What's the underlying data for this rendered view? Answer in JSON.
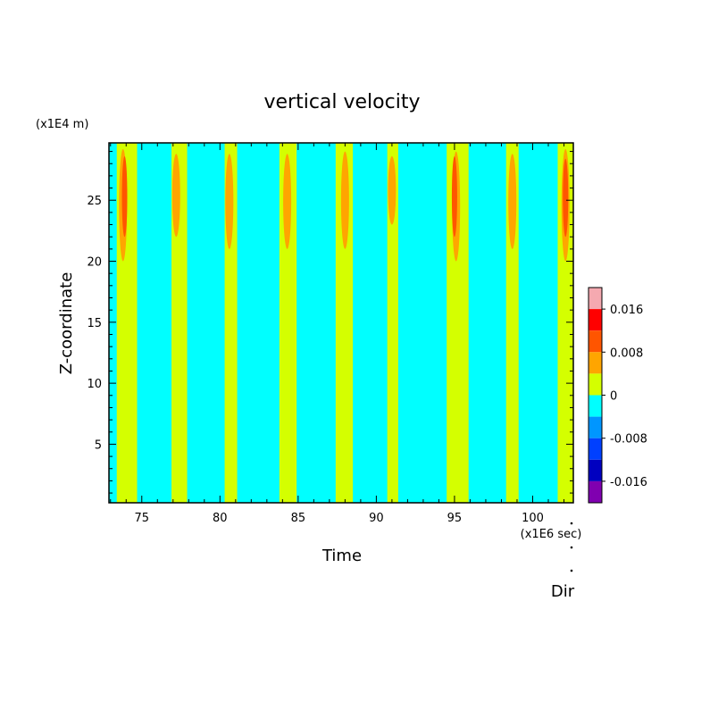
{
  "chart_data": {
    "type": "heatmap",
    "title": "vertical velocity",
    "xlabel": "Time",
    "ylabel": "Z-coordinate",
    "x_unit_label": "(x1E6 sec)",
    "y_unit_label": "(x1E4 m)",
    "xlim": [
      72.9,
      102.6
    ],
    "ylim": [
      0.2,
      29.7
    ],
    "x_ticks": [
      75,
      80,
      85,
      90,
      95,
      100
    ],
    "y_ticks": [
      5,
      10,
      15,
      20,
      25
    ],
    "x_tick_labels": [
      "75",
      "80",
      "85",
      "90",
      "95",
      "100"
    ],
    "y_tick_labels": [
      "5",
      "10",
      "15",
      "20",
      "25"
    ],
    "background_value": "-0.004 to 0",
    "bands_0_to_0p004": [
      {
        "x0": 73.4,
        "x1": 74.7
      },
      {
        "x0": 76.9,
        "x1": 77.9
      },
      {
        "x0": 80.3,
        "x1": 81.1
      },
      {
        "x0": 83.8,
        "x1": 84.9
      },
      {
        "x0": 87.4,
        "x1": 88.5
      },
      {
        "x0": 90.7,
        "x1": 91.4
      },
      {
        "x0": 94.5,
        "x1": 95.9
      },
      {
        "x0": 98.3,
        "x1": 99.1
      },
      {
        "x0": 101.6,
        "x1": 102.6
      }
    ],
    "upper_maxima": [
      {
        "x": 73.8,
        "zmin": 20,
        "zmax": 29.2,
        "level": "0.004 to 0.008"
      },
      {
        "x": 73.9,
        "zmin": 22,
        "zmax": 28.6,
        "level": "0.008 to 0.012"
      },
      {
        "x": 77.2,
        "zmin": 22,
        "zmax": 28.8,
        "level": "0.004 to 0.008"
      },
      {
        "x": 80.6,
        "zmin": 21,
        "zmax": 28.8,
        "level": "0.004 to 0.008"
      },
      {
        "x": 84.3,
        "zmin": 21,
        "zmax": 28.8,
        "level": "0.004 to 0.008"
      },
      {
        "x": 88.0,
        "zmin": 21,
        "zmax": 29.0,
        "level": "0.004 to 0.008"
      },
      {
        "x": 91.0,
        "zmin": 23,
        "zmax": 28.6,
        "level": "0.004 to 0.008"
      },
      {
        "x": 95.1,
        "zmin": 20,
        "zmax": 29.0,
        "level": "0.004 to 0.008"
      },
      {
        "x": 95.0,
        "zmin": 22,
        "zmax": 28.6,
        "level": "0.008 to 0.012"
      },
      {
        "x": 98.7,
        "zmin": 21,
        "zmax": 28.8,
        "level": "0.004 to 0.008"
      },
      {
        "x": 102.1,
        "zmin": 20,
        "zmax": 29.2,
        "level": "0.004 to 0.008"
      },
      {
        "x": 102.1,
        "zmin": 22,
        "zmax": 28.4,
        "level": "0.008 to 0.012"
      }
    ],
    "colorbar": {
      "levels": [
        {
          "color": "#f5a9b0"
        },
        {
          "color": "#ff0000"
        },
        {
          "color": "#ff5500"
        },
        {
          "color": "#ffa500"
        },
        {
          "color": "#d4ff00"
        },
        {
          "color": "#00ffff"
        },
        {
          "color": "#0096ff"
        },
        {
          "color": "#0040ff"
        },
        {
          "color": "#0000c0"
        },
        {
          "color": "#8000b0"
        }
      ],
      "labels": [
        "0.016",
        "0.008",
        "0",
        "-0.008",
        "-0.016"
      ]
    },
    "footer_label": "Dir"
  }
}
